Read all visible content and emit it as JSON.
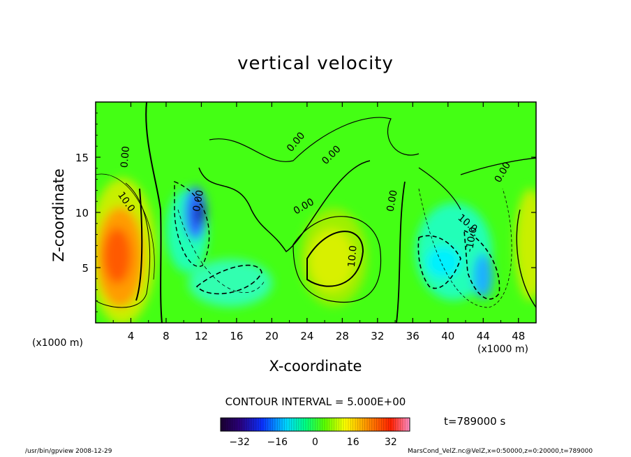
{
  "chart_data": {
    "type": "heatmap",
    "title": "vertical velocity",
    "xlabel": "X-coordinate",
    "ylabel": "Z-coordinate",
    "x_unit_left": "(x1000 m)",
    "x_unit_right": "(x1000 m)",
    "xlim": [
      0,
      50
    ],
    "ylim": [
      0,
      20
    ],
    "x_ticks": [
      "4",
      "8",
      "12",
      "16",
      "20",
      "24",
      "28",
      "32",
      "36",
      "40",
      "44",
      "48"
    ],
    "y_ticks": [
      "5",
      "10",
      "15"
    ],
    "contour_labels": [
      "0.00",
      "0.00",
      "0.00",
      "0.00",
      "0.00",
      "0.00",
      "10.0",
      "10.0",
      "-10.0",
      "10.0",
      "0.00"
    ],
    "contour_interval": "CONTOUR INTERVAL = 5.000E+00",
    "colorbar_ticks": [
      "-32",
      "-16",
      "0",
      "16",
      "32"
    ],
    "colorbar_range": [
      -40,
      40
    ],
    "features": [
      {
        "x": 3,
        "z": 6,
        "value": 28
      },
      {
        "x": 12,
        "z": 10,
        "value": -30
      },
      {
        "x": 15,
        "z": 4,
        "value": -10
      },
      {
        "x": 28,
        "z": 6.5,
        "value": 14
      },
      {
        "x": 42,
        "z": 5.5,
        "value": -16
      },
      {
        "x": 44,
        "z": 4,
        "value": -22
      },
      {
        "x": 49.5,
        "z": 7,
        "value": 14
      }
    ]
  },
  "timestamp": "t=789000 s",
  "footer_left": "/usr/bin/gpview  2008-12-29",
  "footer_right": "MarsCond_VelZ.nc@VelZ,x=0:50000,z=0:20000,t=789000"
}
